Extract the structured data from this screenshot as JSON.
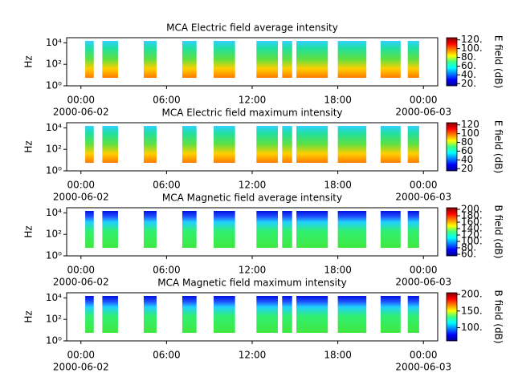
{
  "chart_data": [
    {
      "type": "spectrogram",
      "title": "MCA  Electric field average intensity",
      "ylabel": "Hz",
      "ylog": true,
      "xlim": [
        -1,
        25
      ],
      "xticks": [
        {
          "value": 0,
          "label": "00:00"
        },
        {
          "value": 6,
          "label": "06:00"
        },
        {
          "value": 12,
          "label": "12:00"
        },
        {
          "value": 18,
          "label": "18:00"
        },
        {
          "value": 24,
          "label": "00:00"
        }
      ],
      "date_labels": [
        {
          "value": 0,
          "label": "2000-06-02"
        },
        {
          "value": 24,
          "label": "2000-06-03"
        }
      ],
      "ylim": [
        1,
        30000
      ],
      "yticks": [
        {
          "value": 1,
          "label": "10⁰"
        },
        {
          "value": 100,
          "label": "10²"
        },
        {
          "value": 10000,
          "label": "10⁴"
        }
      ],
      "segments": [
        [
          0.3,
          0.9
        ],
        [
          1.5,
          2.6
        ],
        [
          4.4,
          5.3
        ],
        [
          7.1,
          8.1
        ],
        [
          9.3,
          10.8
        ],
        [
          12.3,
          13.8
        ],
        [
          14.1,
          14.8
        ],
        [
          15.1,
          17.3
        ],
        [
          18.0,
          20.0
        ],
        [
          21.0,
          22.4
        ],
        [
          22.9,
          23.7
        ]
      ],
      "clabel": "E field (dB)",
      "clim": [
        15,
        125
      ],
      "cticks": [
        {
          "value": 20,
          "label": "20."
        },
        {
          "value": 40,
          "label": "40."
        },
        {
          "value": 60,
          "label": "60."
        },
        {
          "value": 80,
          "label": "80."
        },
        {
          "value": 100,
          "label": "100."
        },
        {
          "value": 120,
          "label": "120."
        }
      ],
      "field": "E"
    },
    {
      "type": "spectrogram",
      "title": "MCA  Electric field maximum intensity",
      "ylabel": "Hz",
      "ylog": true,
      "xlim": [
        -1,
        25
      ],
      "xticks": [
        {
          "value": 0,
          "label": "00:00"
        },
        {
          "value": 6,
          "label": "06:00"
        },
        {
          "value": 12,
          "label": "12:00"
        },
        {
          "value": 18,
          "label": "18:00"
        },
        {
          "value": 24,
          "label": "00:00"
        }
      ],
      "date_labels": [
        {
          "value": 0,
          "label": "2000-06-02"
        },
        {
          "value": 24,
          "label": "2000-06-03"
        }
      ],
      "ylim": [
        1,
        30000
      ],
      "yticks": [
        {
          "value": 1,
          "label": "10⁰"
        },
        {
          "value": 100,
          "label": "10²"
        },
        {
          "value": 10000,
          "label": "10⁴"
        }
      ],
      "segments": [
        [
          0.3,
          0.9
        ],
        [
          1.5,
          2.6
        ],
        [
          4.4,
          5.3
        ],
        [
          7.1,
          8.1
        ],
        [
          9.3,
          10.8
        ],
        [
          12.3,
          13.8
        ],
        [
          14.1,
          14.8
        ],
        [
          15.1,
          17.3
        ],
        [
          18.0,
          20.0
        ],
        [
          21.0,
          22.4
        ],
        [
          22.9,
          23.7
        ]
      ],
      "clabel": "E field (dB)",
      "clim": [
        15,
        125
      ],
      "cticks": [
        20,
        40,
        60,
        80,
        100,
        120
      ],
      "field": "E"
    },
    {
      "type": "spectrogram",
      "title": "MCA  Magnetic field average intensity",
      "ylabel": "Hz",
      "ylog": true,
      "xlim": [
        -1,
        25
      ],
      "xticks": [
        {
          "value": 0,
          "label": "00:00"
        },
        {
          "value": 6,
          "label": "06:00"
        },
        {
          "value": 12,
          "label": "12:00"
        },
        {
          "value": 18,
          "label": "18:00"
        },
        {
          "value": 24,
          "label": "00:00"
        }
      ],
      "date_labels": [
        {
          "value": 0,
          "label": "2000-06-02"
        },
        {
          "value": 24,
          "label": "2000-06-03"
        }
      ],
      "ylim": [
        1,
        30000
      ],
      "yticks": [
        {
          "value": 1,
          "label": "10⁰"
        },
        {
          "value": 100,
          "label": "10²"
        },
        {
          "value": 10000,
          "label": "10⁴"
        }
      ],
      "segments": [
        [
          0.3,
          0.9
        ],
        [
          1.5,
          2.6
        ],
        [
          4.4,
          5.3
        ],
        [
          7.1,
          8.1
        ],
        [
          9.3,
          10.8
        ],
        [
          12.3,
          13.8
        ],
        [
          14.1,
          14.8
        ],
        [
          15.1,
          17.3
        ],
        [
          18.0,
          20.0
        ],
        [
          21.0,
          22.4
        ],
        [
          22.9,
          23.7
        ]
      ],
      "clabel": "B field (dB)",
      "clim": [
        55,
        205
      ],
      "cticks": [
        {
          "value": 60,
          "label": "60."
        },
        {
          "value": 80,
          "label": "80."
        },
        {
          "value": 100,
          "label": "100."
        },
        {
          "value": 120,
          "label": "120."
        },
        {
          "value": 140,
          "label": "140."
        },
        {
          "value": 160,
          "label": "160."
        },
        {
          "value": 180,
          "label": "180."
        },
        {
          "value": 200,
          "label": "200."
        }
      ],
      "field": "B"
    },
    {
      "type": "spectrogram",
      "title": "MCA  Magnetic field maximum intensity",
      "ylabel": "Hz",
      "ylog": true,
      "xlim": [
        -1,
        25
      ],
      "xticks": [
        {
          "value": 0,
          "label": "00:00"
        },
        {
          "value": 6,
          "label": "06:00"
        },
        {
          "value": 12,
          "label": "12:00"
        },
        {
          "value": 18,
          "label": "18:00"
        },
        {
          "value": 24,
          "label": "00:00"
        }
      ],
      "date_labels": [
        {
          "value": 0,
          "label": "2000-06-02"
        },
        {
          "value": 24,
          "label": "2000-06-03"
        }
      ],
      "ylim": [
        1,
        30000
      ],
      "yticks": [
        {
          "value": 1,
          "label": "10⁰"
        },
        {
          "value": 100,
          "label": "10²"
        },
        {
          "value": 10000,
          "label": "10⁴"
        }
      ],
      "segments": [
        [
          0.3,
          0.9
        ],
        [
          1.5,
          2.6
        ],
        [
          4.4,
          5.3
        ],
        [
          7.1,
          8.1
        ],
        [
          9.3,
          10.8
        ],
        [
          12.3,
          13.8
        ],
        [
          14.1,
          14.8
        ],
        [
          15.1,
          17.3
        ],
        [
          18.0,
          20.0
        ],
        [
          21.0,
          22.4
        ],
        [
          22.9,
          23.7
        ]
      ],
      "clabel": "B field (dB)",
      "clim": [
        60,
        205
      ],
      "cticks": [
        {
          "value": 100,
          "label": "100."
        },
        {
          "value": 150,
          "label": "150."
        },
        {
          "value": 200,
          "label": "200."
        }
      ],
      "field": "B"
    }
  ]
}
